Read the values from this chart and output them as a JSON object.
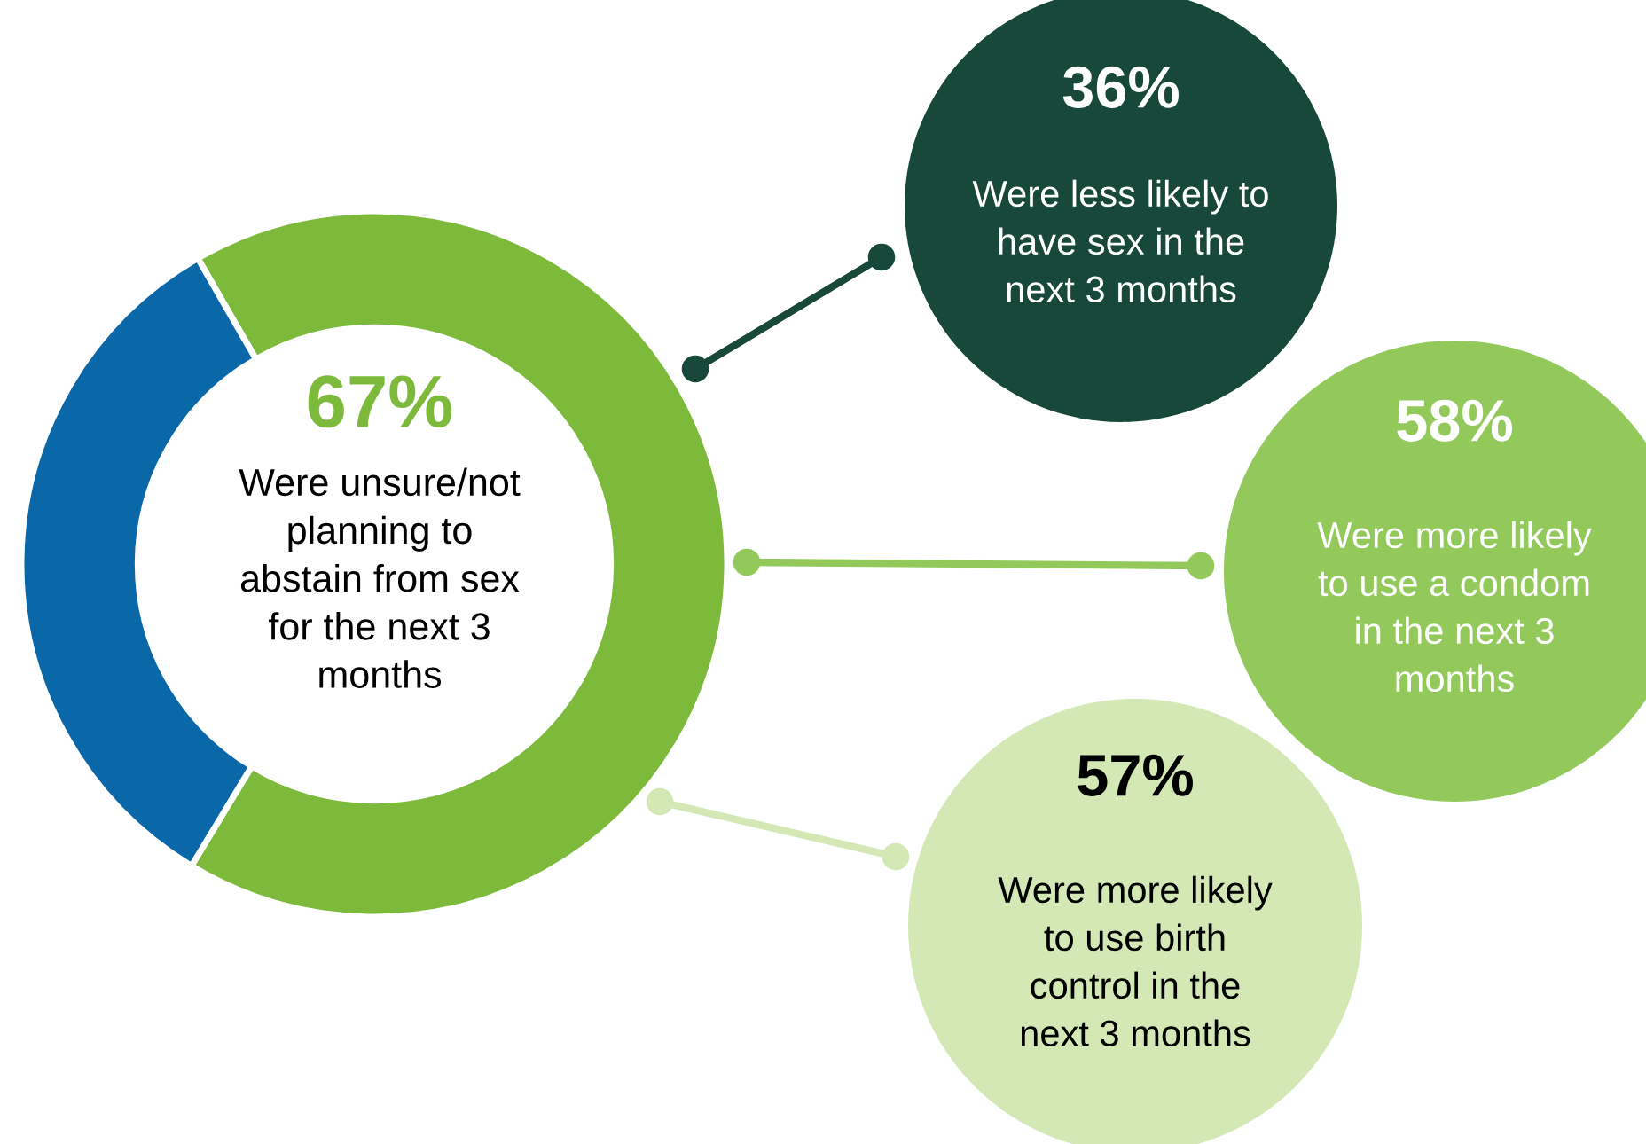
{
  "chart_data": {
    "type": "donut",
    "categories": [
      null,
      null
    ],
    "values": [
      67,
      33
    ],
    "colors": [
      "#7dba3c",
      "#0a67a8"
    ],
    "value_labels": [
      "67%",
      null
    ],
    "annotations": [
      "Were unsure/not\nplanning to\nabstain from sex\nfor the next 3\nmonths",
      "36%",
      "Were less likely to\nhave sex in the\nnext 3 months",
      "58%",
      "Were more likely\nto use a condom\nin the next 3\nmonths",
      "57%",
      "Were more likely\nto use birth\ncontrol in the\nnext 3 months"
    ]
  }
}
